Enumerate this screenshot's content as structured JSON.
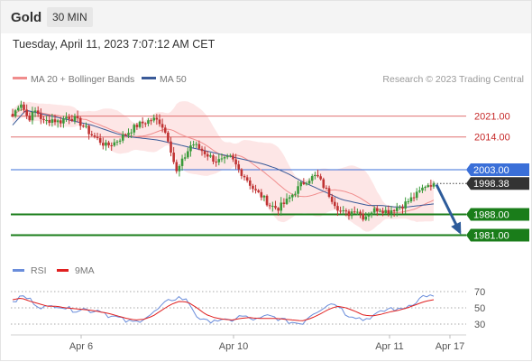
{
  "header": {
    "title": "Gold",
    "timeframe": "30 MIN"
  },
  "timestamp": "Tuesday, April 11, 2023 7:07:12 AM CET",
  "legend": {
    "ma20_label": "MA 20 + Bollinger Bands",
    "ma50_label": "MA 50",
    "rsi_label": "RSI",
    "ma9_label": "9MA",
    "copyright": "Research © 2023 Trading Central"
  },
  "colors": {
    "ma20": "#f08d8d",
    "ma50": "#3a5a98",
    "band": "#fcdede",
    "up": "#3a9a3a",
    "down": "#c03333",
    "support": "#1a7d1a",
    "resistance": "#e07070",
    "pivot": "#3a6fd8",
    "last": "#333333",
    "rsi": "#6a8ddb",
    "rsi_ma": "#e02020",
    "arrow": "#2d5b9a"
  },
  "chart_data": [
    {
      "type": "candlestick",
      "title": "Gold",
      "interval": "30 MIN",
      "ylim": [
        1976,
        2030
      ],
      "x_tick_labels": [
        "Apr 6",
        "Apr 10",
        "Apr 11",
        "Apr 17"
      ],
      "price_levels": [
        {
          "label": "2021.00",
          "value": 2021,
          "kind": "resistance"
        },
        {
          "label": "2014.00",
          "value": 2014,
          "kind": "resistance"
        },
        {
          "label": "2003.00",
          "value": 2003,
          "kind": "pivot"
        },
        {
          "label": "1998.38",
          "value": 1998.38,
          "kind": "last"
        },
        {
          "label": "1988.00",
          "value": 1988,
          "kind": "support"
        },
        {
          "label": "1981.00",
          "value": 1981,
          "kind": "support"
        }
      ],
      "close_anchors": [
        2021,
        2026,
        2020,
        2023,
        2019,
        2020,
        2019,
        2021,
        2020,
        2018,
        2015,
        2013,
        2011,
        2012,
        2014,
        2016,
        2018,
        2019,
        2020,
        2019,
        2013,
        2002,
        2007,
        2012,
        2010,
        2008,
        2006,
        2006,
        2007,
        2003,
        2000,
        1996,
        1994,
        1991,
        1990,
        1992,
        1995,
        1998,
        2000,
        2001,
        1997,
        1993,
        1989,
        1988,
        1990,
        1987,
        1989,
        1990,
        1989,
        1990,
        1991,
        1993,
        1995,
        1998,
        1998.38
      ],
      "ma50_anchors": [
        2018,
        2023,
        2022,
        2021,
        2020,
        2019,
        2018,
        2016.5,
        2015,
        2014,
        2013.5,
        2013,
        2012,
        2011,
        2010,
        2009,
        2008,
        2007,
        2006,
        2005,
        2003.5,
        2001.5,
        1999,
        1997,
        1995,
        1993,
        1992,
        1991,
        1991,
        1990.5,
        1990.5,
        1991,
        1991.5
      ],
      "arrow": {
        "from": 1998,
        "to": 1982
      }
    },
    {
      "type": "line",
      "name": "RSI",
      "ylim": [
        20,
        80
      ],
      "y_ticks": [
        70,
        50,
        30
      ],
      "rsi_anchors": [
        55,
        65,
        60,
        52,
        50,
        54,
        50,
        47,
        49,
        46,
        48,
        40,
        38,
        33,
        32,
        38,
        43,
        52,
        60,
        63,
        58,
        40,
        32,
        36,
        33,
        35,
        40,
        37,
        35,
        40,
        38,
        34,
        32,
        31,
        42,
        48,
        55,
        55,
        42,
        40,
        35,
        40,
        44,
        50,
        47,
        52,
        58,
        66,
        63
      ],
      "rsi_ma_anchors": [
        60,
        62,
        58,
        55,
        52,
        52,
        50,
        49,
        48,
        47,
        45,
        43,
        40,
        37,
        35,
        36,
        40,
        47,
        54,
        58,
        57,
        50,
        42,
        38,
        36,
        35,
        37,
        38,
        37,
        37,
        37,
        36,
        35,
        34,
        37,
        42,
        48,
        52,
        50,
        46,
        41,
        40,
        42,
        45,
        47,
        50,
        54,
        58,
        60
      ]
    }
  ]
}
